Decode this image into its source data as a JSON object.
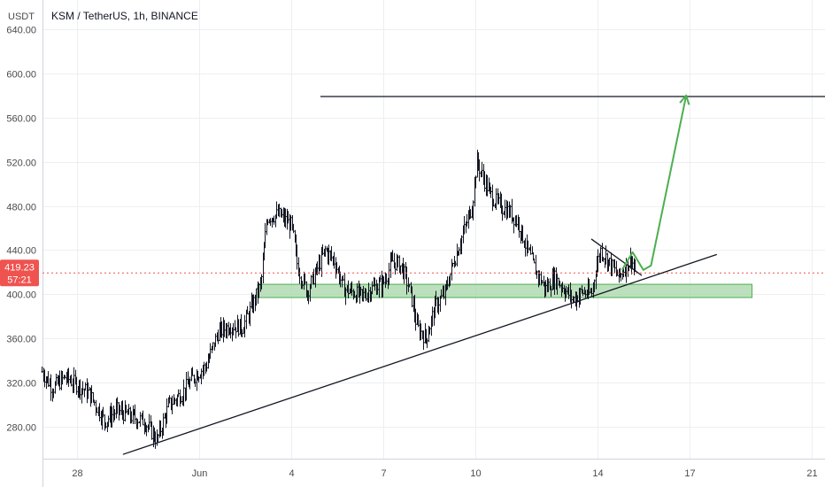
{
  "header": {
    "currency": "USDT",
    "symbol_line": "KSM / TetherUS, 1h, BINANCE"
  },
  "price_tag": {
    "price": "419.23",
    "countdown": "57:21",
    "value": 419.23,
    "color": "#ef5350"
  },
  "colors": {
    "candle": "#131722",
    "trendline": "#131722",
    "arrow": "#4caf50",
    "zone_fill": "#a5d6a7",
    "zone_stroke": "#4caf50",
    "price_line": "#ef5350",
    "grid": "#eceff1"
  },
  "chart_data": {
    "type": "candlestick",
    "title": "KSM / TetherUS, 1h, BINANCE",
    "ylabel": "USDT",
    "ylim": [
      250,
      650
    ],
    "y_ticks": [
      280,
      320,
      360,
      400,
      440,
      480,
      520,
      560,
      600,
      640
    ],
    "y_tick_labels": [
      "280.00",
      "320.00",
      "360.00",
      "400.00",
      "440.00",
      "480.00",
      "520.00",
      "560.00",
      "600.00",
      "640.00"
    ],
    "x_unit": "day",
    "xlim": [
      26.8,
      53.3
    ],
    "x_ticks": [
      {
        "x": 28,
        "label": "28"
      },
      {
        "x": 32,
        "label": "Jun"
      },
      {
        "x": 35,
        "label": "4"
      },
      {
        "x": 38,
        "label": "7"
      },
      {
        "x": 41,
        "label": "10"
      },
      {
        "x": 45,
        "label": "14"
      },
      {
        "x": 48,
        "label": "17"
      },
      {
        "x": 52,
        "label": "21"
      }
    ],
    "close_path": [
      [
        26.85,
        330
      ],
      [
        27.2,
        315
      ],
      [
        27.6,
        325
      ],
      [
        28.0,
        318
      ],
      [
        28.4,
        310
      ],
      [
        28.9,
        285
      ],
      [
        29.3,
        295
      ],
      [
        29.7,
        290
      ],
      [
        30.2,
        285
      ],
      [
        30.6,
        268
      ],
      [
        31.0,
        300
      ],
      [
        31.4,
        310
      ],
      [
        31.8,
        325
      ],
      [
        32.2,
        335
      ],
      [
        32.6,
        365
      ],
      [
        33.0,
        372
      ],
      [
        33.4,
        370
      ],
      [
        33.8,
        395
      ],
      [
        34.0,
        410
      ],
      [
        34.2,
        470
      ],
      [
        34.6,
        472
      ],
      [
        35.0,
        462
      ],
      [
        35.2,
        425
      ],
      [
        35.5,
        402
      ],
      [
        35.8,
        420
      ],
      [
        36.1,
        440
      ],
      [
        36.4,
        430
      ],
      [
        36.7,
        405
      ],
      [
        37.0,
        402
      ],
      [
        37.3,
        398
      ],
      [
        37.6,
        405
      ],
      [
        38.0,
        410
      ],
      [
        38.3,
        430
      ],
      [
        38.6,
        425
      ],
      [
        38.9,
        400
      ],
      [
        39.1,
        370
      ],
      [
        39.4,
        360
      ],
      [
        39.7,
        390
      ],
      [
        40.0,
        400
      ],
      [
        40.3,
        430
      ],
      [
        40.6,
        455
      ],
      [
        40.9,
        480
      ],
      [
        41.05,
        520
      ],
      [
        41.2,
        510
      ],
      [
        41.5,
        490
      ],
      [
        41.8,
        480
      ],
      [
        42.1,
        475
      ],
      [
        42.4,
        465
      ],
      [
        42.7,
        440
      ],
      [
        43.0,
        420
      ],
      [
        43.3,
        405
      ],
      [
        43.6,
        415
      ],
      [
        43.9,
        405
      ],
      [
        44.2,
        395
      ],
      [
        44.5,
        402
      ],
      [
        44.8,
        400
      ],
      [
        44.95,
        425
      ],
      [
        45.1,
        440
      ],
      [
        45.4,
        428
      ],
      [
        45.7,
        415
      ],
      [
        45.9,
        425
      ],
      [
        46.1,
        432
      ],
      [
        46.25,
        419.23
      ]
    ],
    "drawings": [
      {
        "name": "resistance-line",
        "type": "hline",
        "price": 579,
        "x_from": 35.95,
        "x_to": 53.3
      },
      {
        "name": "rising-trendline",
        "type": "segment",
        "from": [
          29.5,
          255
        ],
        "to": [
          48.9,
          436
        ]
      },
      {
        "name": "wedge-upper-line",
        "type": "segment",
        "from": [
          44.8,
          450
        ],
        "to": [
          46.45,
          417
        ]
      },
      {
        "name": "support-zone",
        "type": "zone",
        "x_from": 33.9,
        "x_to": 50.05,
        "price_low": 397,
        "price_high": 409
      },
      {
        "name": "projection-arrow",
        "type": "polyline-arrow",
        "points": [
          [
            45.8,
            422
          ],
          [
            46.15,
            438
          ],
          [
            46.5,
            422
          ],
          [
            46.75,
            426
          ],
          [
            47.9,
            580
          ]
        ]
      }
    ]
  }
}
